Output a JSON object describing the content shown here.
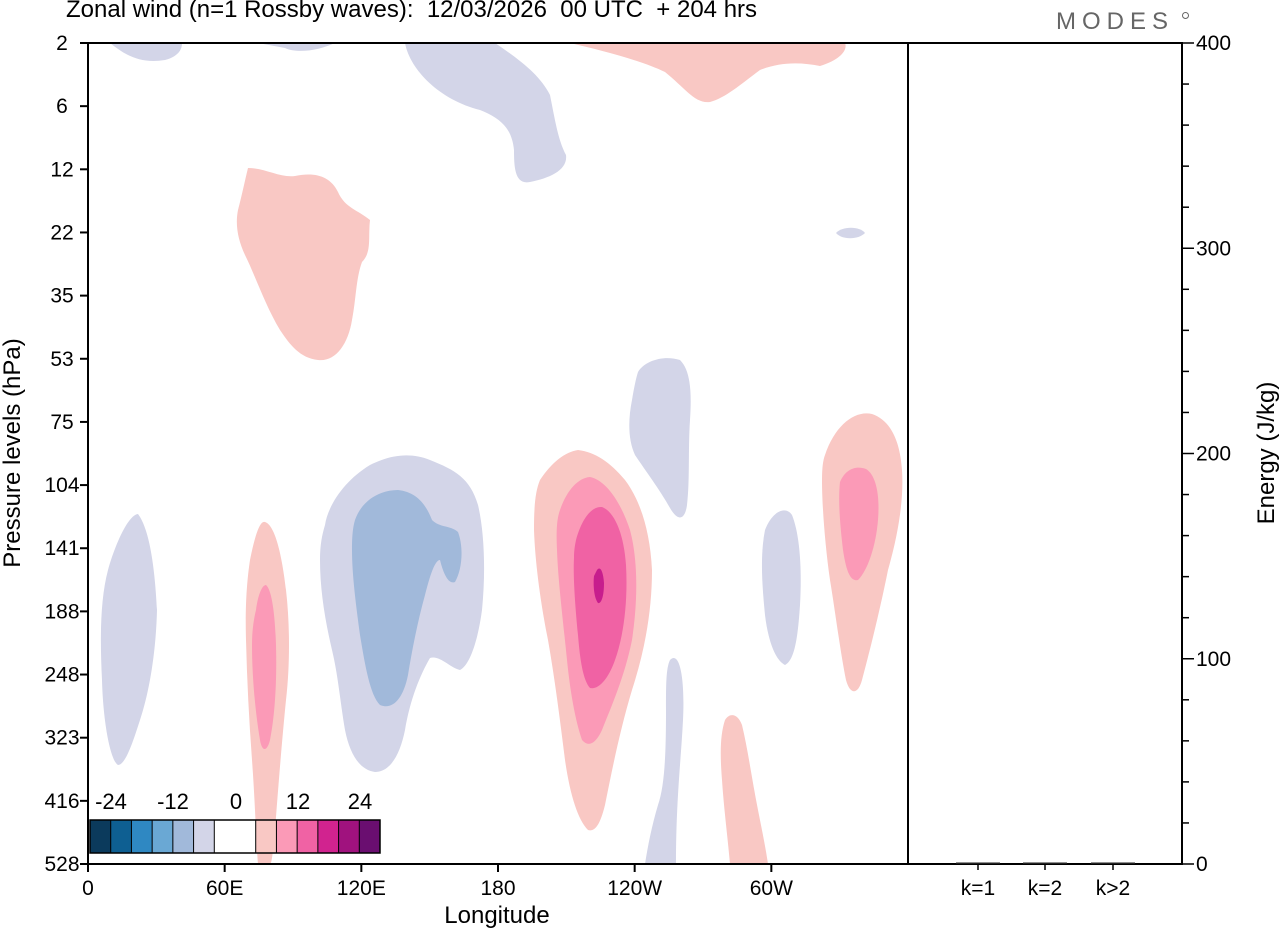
{
  "chart_data": {
    "type": "contour",
    "title": "Zonal wind (n=1 Rossby waves):  12/03/2026  00 UTC  + 204 hrs",
    "brand": "MODES",
    "main_panel": {
      "xlabel": "Longitude",
      "ylabel": "Pressure levels (hPa)",
      "x_ticks": [
        "0",
        "60E",
        "120E",
        "180",
        "120W",
        "60W"
      ],
      "y_ticks": [
        "2",
        "6",
        "12",
        "22",
        "35",
        "53",
        "75",
        "104",
        "141",
        "188",
        "248",
        "323",
        "416",
        "528"
      ],
      "colorbar": {
        "labels": [
          "-24",
          "-12",
          "0",
          "12",
          "24"
        ],
        "colors": [
          "#0b3a5c",
          "#0e5f92",
          "#2f88c2",
          "#6aa8d4",
          "#a1b9da",
          "#d3d5e8",
          "#ffffff",
          "#ffffff",
          "#f9c8c4",
          "#fb9ab7",
          "#f062a4",
          "#d1238f",
          "#a0127e",
          "#6a0e70"
        ]
      }
    },
    "energy_panel": {
      "ylabel": "Energy (J/kg)",
      "ylim": [
        0,
        400
      ],
      "y_ticks": [
        "0",
        "100",
        "200",
        "300",
        "400"
      ],
      "categories": [
        "k=1",
        "k=2",
        "k>2"
      ],
      "values": [
        0.3,
        0.5,
        0.7
      ]
    }
  }
}
